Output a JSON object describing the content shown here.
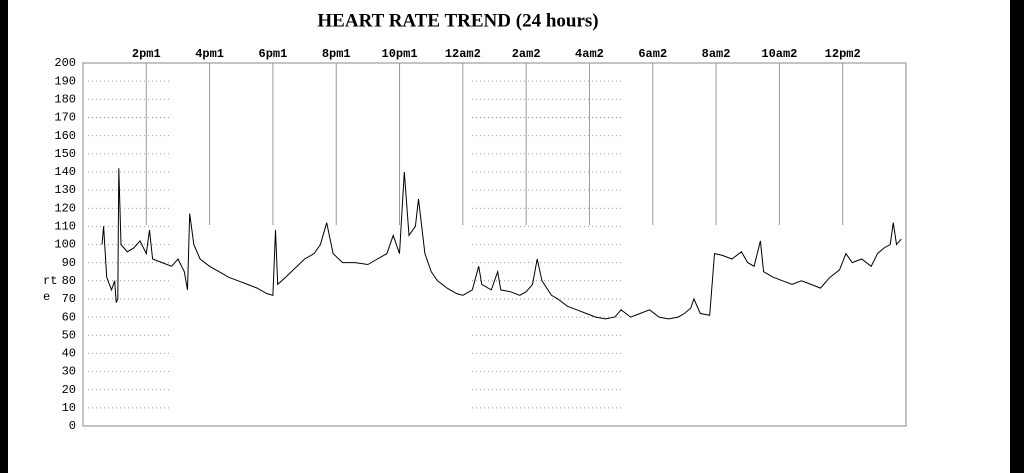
{
  "chart_data": {
    "type": "line",
    "title": "HEART RATE TREND (24 hours)",
    "ylabel_fragments": [
      "rt",
      "e"
    ],
    "xlim": [
      0,
      26
    ],
    "ylim": [
      0,
      200
    ],
    "xticks": [
      {
        "value": 2,
        "label": "2pm1"
      },
      {
        "value": 4,
        "label": "4pm1"
      },
      {
        "value": 6,
        "label": "6pm1"
      },
      {
        "value": 8,
        "label": "8pm1"
      },
      {
        "value": 10,
        "label": "10pm1"
      },
      {
        "value": 12,
        "label": "12am2"
      },
      {
        "value": 14,
        "label": "2am2"
      },
      {
        "value": 16,
        "label": "4am2"
      },
      {
        "value": 18,
        "label": "6am2"
      },
      {
        "value": 20,
        "label": "8am2"
      },
      {
        "value": 22,
        "label": "10am2"
      },
      {
        "value": 24,
        "label": "12pm2"
      }
    ],
    "yticks": [
      0,
      10,
      20,
      30,
      40,
      50,
      60,
      70,
      80,
      90,
      100,
      110,
      120,
      130,
      140,
      150,
      160,
      170,
      180,
      190,
      200
    ],
    "grid": true,
    "series": [
      {
        "color": "#000000",
        "x": [
          0.6,
          0.65,
          0.75,
          0.9,
          1.0,
          1.05,
          1.1,
          1.13,
          1.2,
          1.4,
          1.6,
          1.8,
          2.0,
          2.1,
          2.2,
          2.5,
          2.8,
          3.0,
          3.2,
          3.3,
          3.37,
          3.5,
          3.7,
          4.0,
          4.3,
          4.6,
          4.9,
          5.2,
          5.5,
          5.8,
          6.0,
          6.08,
          6.15,
          6.4,
          6.7,
          7.0,
          7.3,
          7.5,
          7.7,
          7.9,
          8.2,
          8.6,
          9.0,
          9.3,
          9.6,
          9.8,
          10.0,
          10.15,
          10.3,
          10.5,
          10.6,
          10.8,
          11.0,
          11.2,
          11.5,
          11.8,
          12.0,
          12.3,
          12.5,
          12.6,
          12.9,
          13.1,
          13.2,
          13.5,
          13.8,
          14.0,
          14.2,
          14.35,
          14.5,
          14.8,
          15.0,
          15.3,
          15.6,
          15.9,
          16.2,
          16.5,
          16.8,
          17.0,
          17.3,
          17.6,
          17.9,
          18.2,
          18.5,
          18.8,
          19.0,
          19.2,
          19.3,
          19.5,
          19.8,
          19.95,
          20.2,
          20.5,
          20.8,
          21.0,
          21.2,
          21.4,
          21.5,
          21.8,
          22.1,
          22.4,
          22.7,
          23.0,
          23.3,
          23.6,
          23.9,
          24.1,
          24.3,
          24.6,
          24.9,
          25.1,
          25.3,
          25.5,
          25.6,
          25.7,
          25.85
        ],
        "values": [
          100,
          110,
          82,
          75,
          80,
          68,
          70,
          142,
          100,
          96,
          98,
          102,
          95,
          108,
          92,
          90,
          88,
          92,
          85,
          75,
          117,
          100,
          92,
          88,
          85,
          82,
          80,
          78,
          76,
          73,
          72,
          108,
          78,
          82,
          87,
          92,
          95,
          100,
          112,
          95,
          90,
          90,
          89,
          92,
          95,
          105,
          95,
          140,
          105,
          110,
          125,
          95,
          85,
          80,
          76,
          73,
          72,
          75,
          88,
          78,
          75,
          85,
          75,
          74,
          72,
          74,
          78,
          92,
          80,
          72,
          70,
          66,
          64,
          62,
          60,
          59,
          60,
          64,
          60,
          62,
          64,
          60,
          59,
          60,
          62,
          65,
          70,
          62,
          61,
          95,
          94,
          92,
          96,
          90,
          88,
          102,
          85,
          82,
          80,
          78,
          80,
          78,
          76,
          82,
          86,
          95,
          90,
          92,
          88,
          95,
          98,
          100,
          112,
          100,
          103
        ]
      }
    ]
  }
}
